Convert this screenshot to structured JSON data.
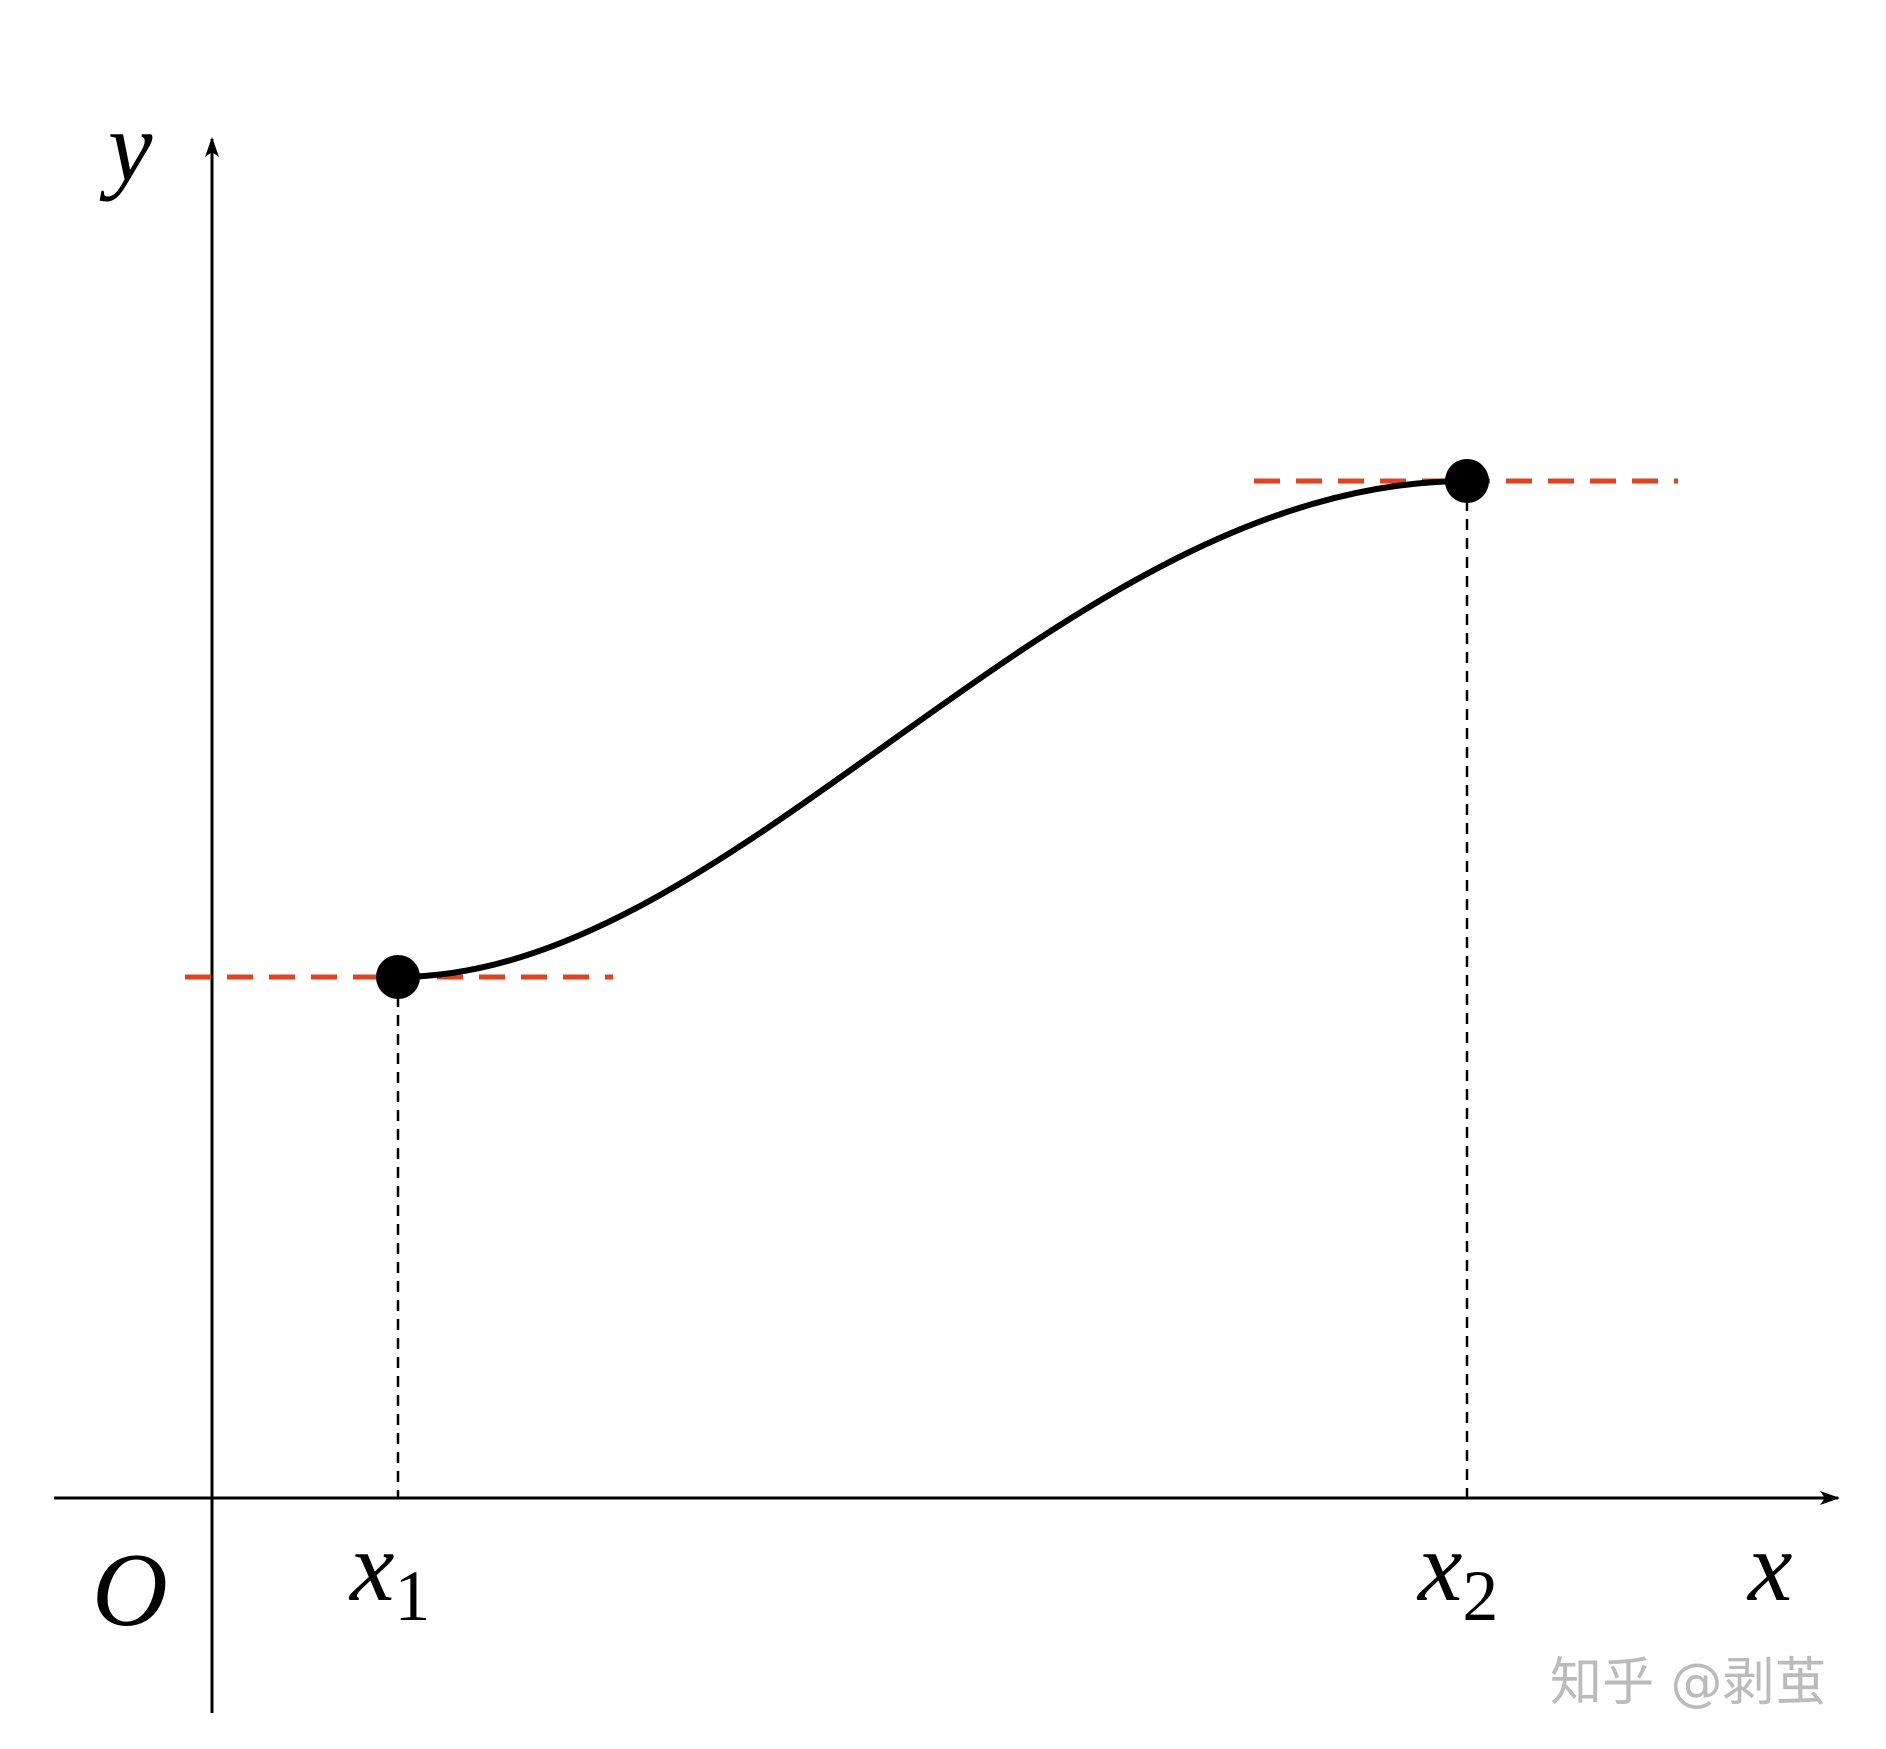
{
  "labels": {
    "y_axis": "y",
    "x_axis": "x",
    "origin": "O",
    "point_1": {
      "base": "x",
      "sub": "1"
    },
    "point_2": {
      "base": "x",
      "sub": "2"
    }
  },
  "watermark": "知乎 @剥茧"
}
